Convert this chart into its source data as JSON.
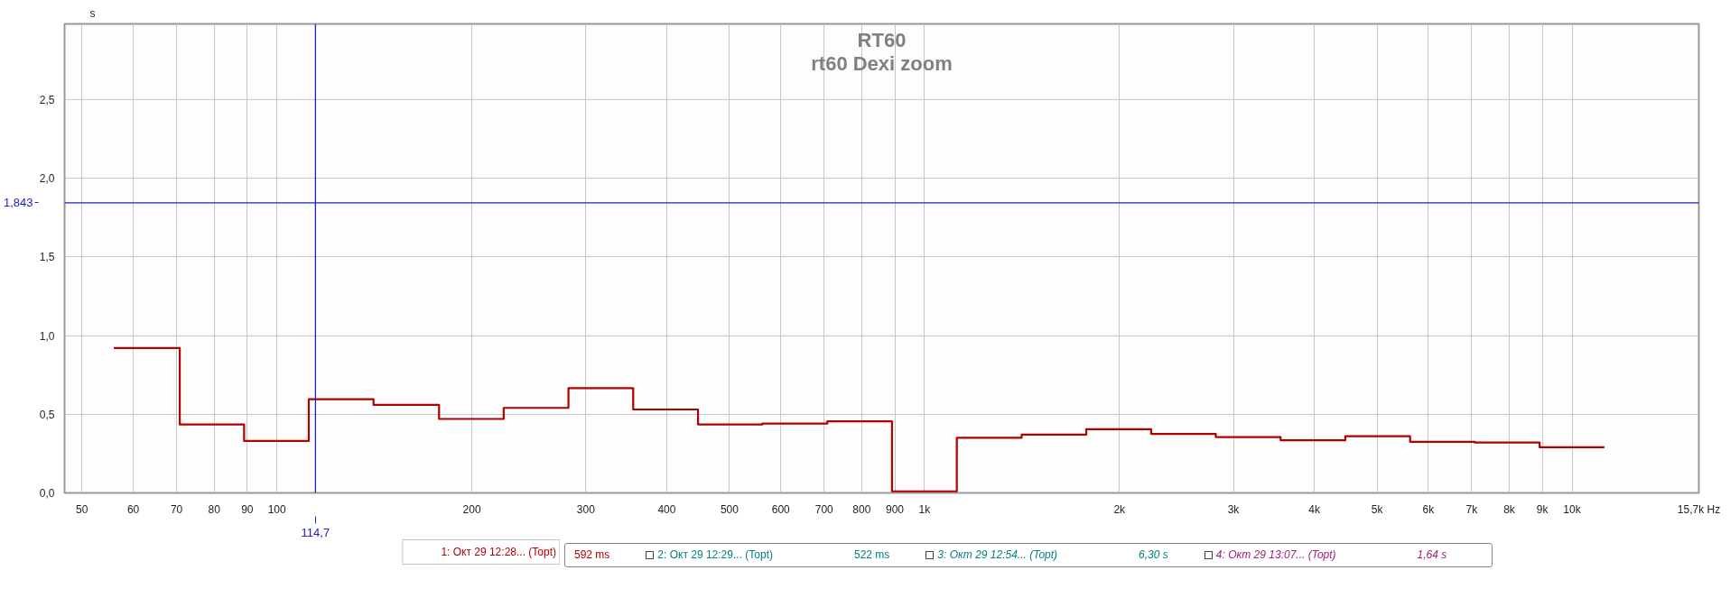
{
  "chart_data": {
    "type": "step",
    "title": "RT60",
    "subtitle": "rt60 Dexi zoom",
    "ylabel": "s",
    "log": "x",
    "grid": true,
    "legend": "bottom",
    "marker": "none",
    "line_style": "solid",
    "xlim": [
      47,
      15700
    ],
    "ylim": [
      0,
      2.98
    ],
    "xticks": [
      50,
      60,
      70,
      80,
      90,
      100,
      200,
      300,
      400,
      500,
      600,
      700,
      800,
      900,
      {
        "value": 1000,
        "label": "1k"
      },
      {
        "value": 2000,
        "label": "2k"
      },
      {
        "value": 3000,
        "label": "3k"
      },
      {
        "value": 4000,
        "label": "4k"
      },
      {
        "value": 5000,
        "label": "5k"
      },
      {
        "value": 6000,
        "label": "6k"
      },
      {
        "value": 7000,
        "label": "7k"
      },
      {
        "value": 8000,
        "label": "8k"
      },
      {
        "value": 9000,
        "label": "9k"
      },
      {
        "value": 10000,
        "label": "10k"
      },
      {
        "value": 15700,
        "label": "15,7k Hz"
      }
    ],
    "yticks": [
      {
        "value": 0,
        "label": "0,0"
      },
      {
        "value": 0.5,
        "label": "0,5"
      },
      {
        "value": 1.0,
        "label": "1,0"
      },
      {
        "value": 1.5,
        "label": "1,5"
      },
      {
        "value": 2.0,
        "label": "2,0"
      },
      {
        "value": 2.5,
        "label": "2,5"
      }
    ],
    "series": [
      {
        "name": "1: Окт 29 12:28... (Topt)",
        "color": "#b00000",
        "x": [
          56,
          70.8,
          89,
          112,
          141,
          178,
          224,
          282,
          355,
          447,
          562,
          708,
          891,
          1122,
          1413,
          1778,
          2239,
          2818,
          3548,
          4467,
          5623,
          7079,
          8913,
          11220
        ],
        "values": [
          0.92,
          0.435,
          0.33,
          0.595,
          0.56,
          0.47,
          0.54,
          0.665,
          0.53,
          0.435,
          0.44,
          0.455,
          0.01,
          0.35,
          0.37,
          0.405,
          0.375,
          0.355,
          0.335,
          0.36,
          0.325,
          0.32,
          0.29,
          0.29
        ]
      }
    ],
    "ref_lines": [
      {
        "axis": "x",
        "value": 114.7,
        "label": "114,7",
        "color": "#2020c0"
      },
      {
        "axis": "y",
        "value": 1.843,
        "label": "1,843",
        "color": "#2020c0"
      }
    ],
    "annotations": [
      "592 ms",
      "2: Окт 29 12:29... (Topt)",
      "522 ms",
      "3: Окт 29 12:54... (Topt)",
      "6,30 s",
      "4: Окт 29 13:07... (Topt)",
      "1,64 s"
    ]
  }
}
